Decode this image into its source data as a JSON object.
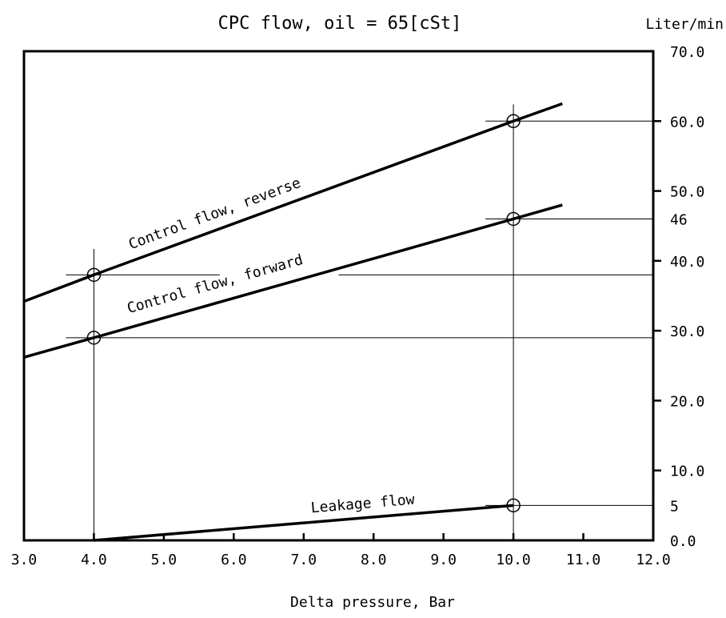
{
  "chart_data": {
    "type": "line",
    "title": "CPC flow, oil = 65[cSt]",
    "xlabel": "Delta pressure, Bar",
    "ylabel": "Liter/min",
    "xlim": [
      3.0,
      12.0
    ],
    "ylim": [
      0.0,
      70.0
    ],
    "grid": false,
    "x_ticks": [
      "3.0",
      "4.0",
      "5.0",
      "6.0",
      "7.0",
      "8.0",
      "9.0",
      "10.0",
      "11.0",
      "12.0"
    ],
    "y_ticks": [
      {
        "value": 0.0,
        "label": "0.0"
      },
      {
        "value": 10.0,
        "label": "10.0"
      },
      {
        "value": 20.0,
        "label": "20.0"
      },
      {
        "value": 30.0,
        "label": "30.0"
      },
      {
        "value": 40.0,
        "label": "40.0"
      },
      {
        "value": 50.0,
        "label": "50.0"
      },
      {
        "value": 60.0,
        "label": "60.0"
      },
      {
        "value": 70.0,
        "label": "70.0"
      }
    ],
    "extra_y_labels": [
      {
        "value": 46,
        "label": "46"
      },
      {
        "value": 5,
        "label": "5"
      }
    ],
    "series": [
      {
        "name": "Control flow, reverse",
        "x": [
          3.0,
          4.0,
          10.0,
          10.7
        ],
        "y": [
          34.2,
          38.0,
          60.0,
          62.5
        ]
      },
      {
        "name": "Control flow, forward",
        "x": [
          3.0,
          4.0,
          10.0,
          10.7
        ],
        "y": [
          26.2,
          29.0,
          46.0,
          48.0
        ]
      },
      {
        "name": "Leakage flow",
        "x": [
          4.0,
          10.0
        ],
        "y": [
          0.0,
          5.0
        ]
      }
    ],
    "markers": [
      {
        "x": 4.0,
        "y": 38.0
      },
      {
        "x": 4.0,
        "y": 29.0
      },
      {
        "x": 10.0,
        "y": 60.0
      },
      {
        "x": 10.0,
        "y": 46.0
      },
      {
        "x": 10.0,
        "y": 5.0
      }
    ]
  }
}
